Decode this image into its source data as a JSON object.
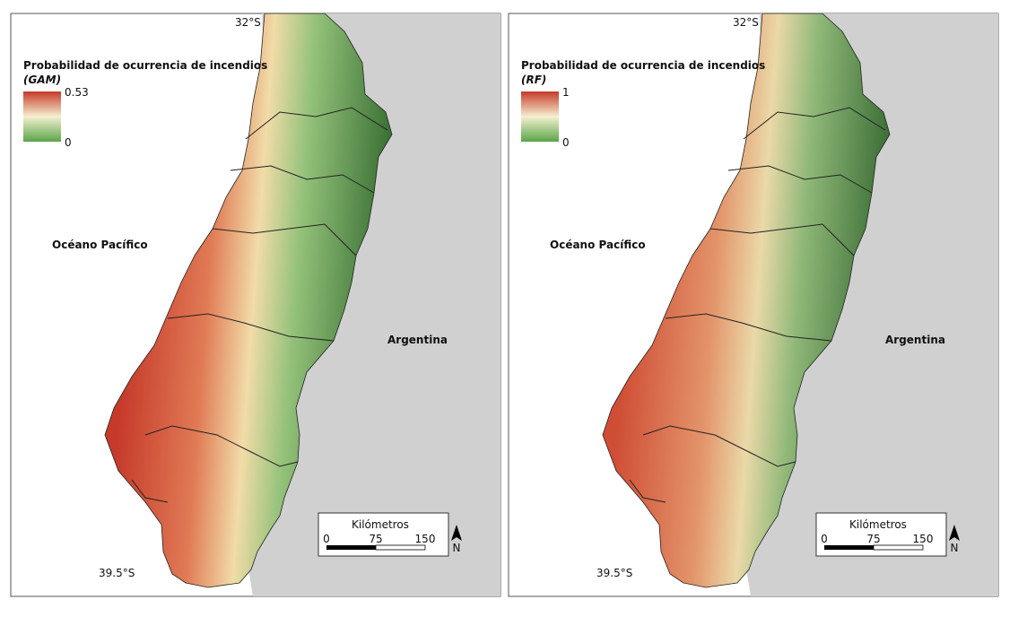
{
  "panels": [
    {
      "legend_title": "Probabilidad de ocurrencia de incendios",
      "legend_model": "(GAM)",
      "legend_max": "0.53",
      "legend_min": "0",
      "lat_top": "32°S",
      "lat_bottom": "39.5°S",
      "ocean": "Océano Pacífico",
      "country": "Argentina",
      "scale_title": "Kilómetros",
      "scale_ticks": [
        "0",
        "75",
        "150"
      ],
      "north": "N"
    },
    {
      "legend_title": "Probabilidad de ocurrencia de incendios",
      "legend_model": "(RF)",
      "legend_max": "1",
      "legend_min": "0",
      "lat_top": "32°S",
      "lat_bottom": "39.5°S",
      "ocean": "Océano Pacífico",
      "country": "Argentina",
      "scale_title": "Kilómetros",
      "scale_ticks": [
        "0",
        "75",
        "150"
      ],
      "north": "N"
    }
  ]
}
